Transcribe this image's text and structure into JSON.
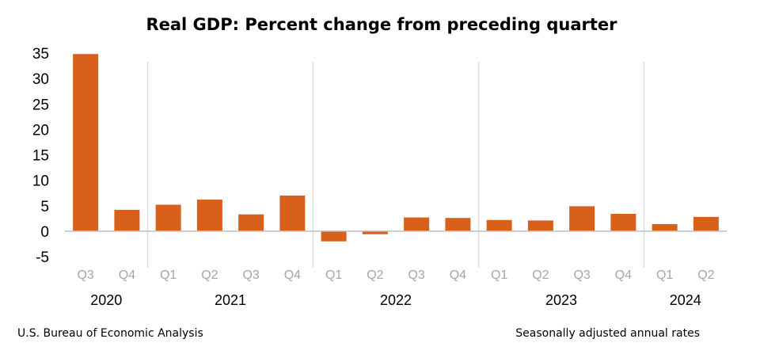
{
  "chart_data": {
    "type": "bar",
    "title": "Real GDP: Percent change from preceding quarter",
    "xlabel": "",
    "ylabel": "",
    "ylim": [
      -5,
      35
    ],
    "yticks": [
      "35",
      "30",
      "25",
      "20",
      "15",
      "10",
      "5",
      "0",
      "-5"
    ],
    "categories": [
      "Q3",
      "Q4",
      "Q1",
      "Q2",
      "Q3",
      "Q4",
      "Q1",
      "Q2",
      "Q3",
      "Q4",
      "Q1",
      "Q2",
      "Q3",
      "Q4",
      "Q1",
      "Q2"
    ],
    "year_groups": [
      {
        "label": "2020",
        "count": 2
      },
      {
        "label": "2021",
        "count": 4
      },
      {
        "label": "2022",
        "count": 4
      },
      {
        "label": "2023",
        "count": 4
      },
      {
        "label": "2024",
        "count": 2
      }
    ],
    "series": [
      {
        "name": "Real GDP",
        "color": "#d9601a",
        "values": [
          34.8,
          4.2,
          5.2,
          6.2,
          3.3,
          7.0,
          -2.0,
          -0.6,
          2.7,
          2.6,
          2.2,
          2.1,
          4.9,
          3.4,
          1.4,
          2.8
        ]
      }
    ],
    "grid": false
  },
  "footer": {
    "source": "U.S. Bureau of Economic Analysis",
    "note": "Seasonally adjusted annual rates"
  }
}
